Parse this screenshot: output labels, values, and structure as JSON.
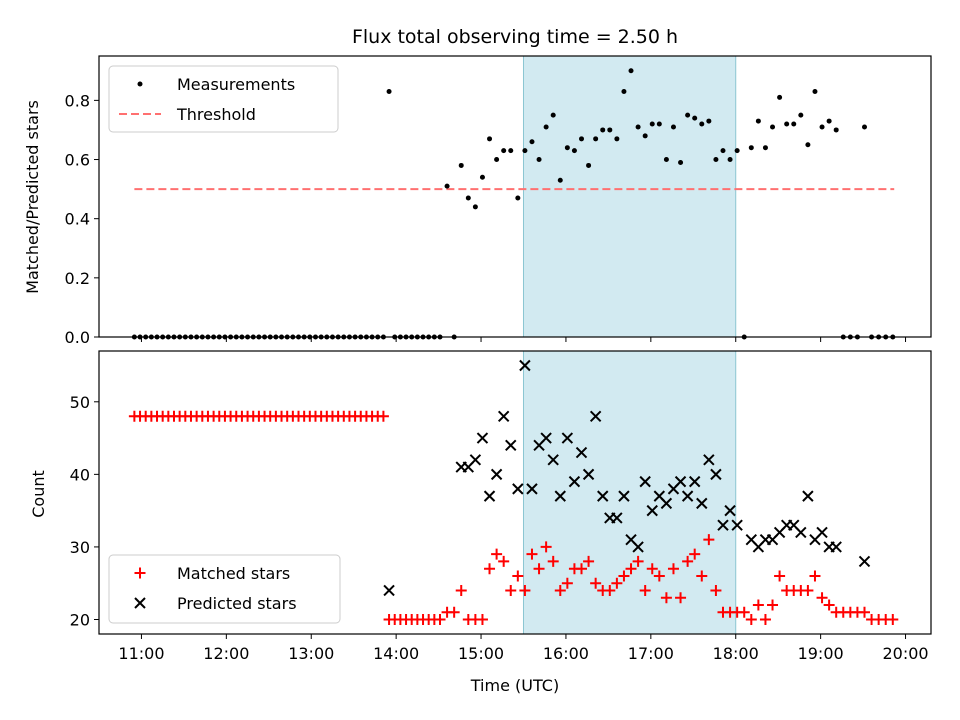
{
  "colors": {
    "measurements": "#000000",
    "threshold": "#ff7070",
    "matched": "#ff0000",
    "predicted": "#000000",
    "observing_window": "#add8e6"
  },
  "chart_data": [
    {
      "type": "scatter",
      "title": "Flux total observing time = 2.50 h",
      "xlabel": "",
      "ylabel": "Matched/Predicted stars",
      "xlim": [
        "10:30",
        "20:18"
      ],
      "ylim": [
        0,
        0.95
      ],
      "yticks": [
        "0.0",
        "0.2",
        "0.4",
        "0.6",
        "0.8"
      ],
      "shaded_interval": [
        "15:30",
        "18:00"
      ],
      "legend": {
        "position": "upper left",
        "entries": [
          "Measurements",
          "Threshold"
        ]
      },
      "threshold": {
        "name": "Threshold",
        "value": 0.5,
        "x": [
          "10:55",
          "19:52"
        ]
      },
      "series": [
        {
          "name": "Measurements",
          "x": [
            "10:55",
            "10:59",
            "11:03",
            "11:07",
            "11:11",
            "11:15",
            "11:19",
            "11:23",
            "11:27",
            "11:31",
            "11:35",
            "11:39",
            "11:43",
            "11:47",
            "11:51",
            "11:55",
            "11:59",
            "12:03",
            "12:07",
            "12:11",
            "12:15",
            "12:19",
            "12:23",
            "12:27",
            "12:31",
            "12:35",
            "12:39",
            "12:43",
            "12:47",
            "12:51",
            "12:55",
            "12:59",
            "13:03",
            "13:07",
            "13:11",
            "13:15",
            "13:19",
            "13:23",
            "13:27",
            "13:31",
            "13:35",
            "13:39",
            "13:43",
            "13:47",
            "13:51",
            "13:55",
            "13:59",
            "14:03",
            "14:07",
            "14:11",
            "14:15",
            "14:19",
            "14:23",
            "14:27",
            "14:31",
            "14:36",
            "14:41",
            "14:46",
            "14:51",
            "14:56",
            "15:01",
            "15:06",
            "15:11",
            "15:16",
            "15:21",
            "15:26",
            "15:31",
            "15:36",
            "15:41",
            "15:46",
            "15:51",
            "15:56",
            "16:01",
            "16:06",
            "16:11",
            "16:16",
            "16:21",
            "16:26",
            "16:31",
            "16:36",
            "16:41",
            "16:46",
            "16:51",
            "16:56",
            "17:01",
            "17:06",
            "17:11",
            "17:16",
            "17:21",
            "17:26",
            "17:31",
            "17:36",
            "17:41",
            "17:46",
            "17:51",
            "17:56",
            "18:01",
            "18:06",
            "18:11",
            "18:16",
            "18:21",
            "18:26",
            "18:31",
            "18:36",
            "18:41",
            "18:46",
            "18:51",
            "18:56",
            "19:01",
            "19:06",
            "19:11",
            "19:16",
            "19:21",
            "19:26",
            "19:31",
            "19:36",
            "19:41",
            "19:46",
            "19:51"
          ],
          "y": [
            0,
            0,
            0,
            0,
            0,
            0,
            0,
            0,
            0,
            0,
            0,
            0,
            0,
            0,
            0,
            0,
            0,
            0,
            0,
            0,
            0,
            0,
            0,
            0,
            0,
            0,
            0,
            0,
            0,
            0,
            0,
            0,
            0,
            0,
            0,
            0,
            0,
            0,
            0,
            0,
            0,
            0,
            0,
            0,
            0,
            0.83,
            0,
            0,
            0,
            0,
            0,
            0,
            0,
            0,
            0,
            0.51,
            0,
            0.58,
            0.47,
            0.44,
            0.54,
            0.67,
            0.6,
            0.63,
            0.63,
            0.47,
            0.63,
            0.66,
            0.6,
            0.71,
            0.75,
            0.53,
            0.64,
            0.63,
            0.67,
            0.58,
            0.67,
            0.7,
            0.7,
            0.67,
            0.83,
            0.9,
            0.71,
            0.68,
            0.72,
            0.72,
            0.6,
            0.71,
            0.59,
            0.75,
            0.74,
            0.72,
            0.73,
            0.6,
            0.63,
            0.6,
            0.63,
            0,
            0.64,
            0.73,
            0.64,
            0.71,
            0.81,
            0.72,
            0.72,
            0.75,
            0.65,
            0.83,
            0.71,
            0.73,
            0.7,
            0,
            0,
            0,
            0.71,
            0,
            0,
            0,
            0
          ]
        }
      ]
    },
    {
      "type": "scatter",
      "title": "",
      "xlabel": "Time (UTC)",
      "ylabel": "Count",
      "xlim": [
        "10:30",
        "20:18"
      ],
      "ylim": [
        18,
        57
      ],
      "xticks": [
        "11:00",
        "12:00",
        "13:00",
        "14:00",
        "15:00",
        "16:00",
        "17:00",
        "18:00",
        "19:00",
        "20:00"
      ],
      "yticks": [
        "20",
        "30",
        "40",
        "50"
      ],
      "shaded_interval": [
        "15:30",
        "18:00"
      ],
      "legend": {
        "position": "lower left",
        "entries": [
          "Matched stars",
          "Predicted stars"
        ]
      },
      "series": [
        {
          "name": "Matched stars",
          "x": [
            "10:55",
            "10:59",
            "11:03",
            "11:07",
            "11:11",
            "11:15",
            "11:19",
            "11:23",
            "11:27",
            "11:31",
            "11:35",
            "11:39",
            "11:43",
            "11:47",
            "11:51",
            "11:55",
            "11:59",
            "12:03",
            "12:07",
            "12:11",
            "12:15",
            "12:19",
            "12:23",
            "12:27",
            "12:31",
            "12:35",
            "12:39",
            "12:43",
            "12:47",
            "12:51",
            "12:55",
            "12:59",
            "13:03",
            "13:07",
            "13:11",
            "13:15",
            "13:19",
            "13:23",
            "13:27",
            "13:31",
            "13:35",
            "13:39",
            "13:43",
            "13:47",
            "13:51",
            "13:55",
            "13:59",
            "14:03",
            "14:07",
            "14:11",
            "14:15",
            "14:19",
            "14:23",
            "14:27",
            "14:31",
            "14:36",
            "14:41",
            "14:46",
            "14:51",
            "14:56",
            "15:01",
            "15:06",
            "15:11",
            "15:16",
            "15:21",
            "15:26",
            "15:31",
            "15:36",
            "15:41",
            "15:46",
            "15:51",
            "15:56",
            "16:01",
            "16:06",
            "16:11",
            "16:16",
            "16:21",
            "16:26",
            "16:31",
            "16:36",
            "16:41",
            "16:46",
            "16:51",
            "16:56",
            "17:01",
            "17:06",
            "17:11",
            "17:16",
            "17:21",
            "17:26",
            "17:31",
            "17:36",
            "17:41",
            "17:46",
            "17:51",
            "17:56",
            "18:01",
            "18:06",
            "18:11",
            "18:16",
            "18:21",
            "18:26",
            "18:31",
            "18:36",
            "18:41",
            "18:46",
            "18:51",
            "18:56",
            "19:01",
            "19:06",
            "19:11",
            "19:16",
            "19:21",
            "19:26",
            "19:31",
            "19:36",
            "19:41",
            "19:46",
            "19:51"
          ],
          "y": [
            48,
            48,
            48,
            48,
            48,
            48,
            48,
            48,
            48,
            48,
            48,
            48,
            48,
            48,
            48,
            48,
            48,
            48,
            48,
            48,
            48,
            48,
            48,
            48,
            48,
            48,
            48,
            48,
            48,
            48,
            48,
            48,
            48,
            48,
            48,
            48,
            48,
            48,
            48,
            48,
            48,
            48,
            48,
            48,
            48,
            20,
            20,
            20,
            20,
            20,
            20,
            20,
            20,
            20,
            20,
            21,
            21,
            24,
            20,
            20,
            20,
            27,
            29,
            28,
            24,
            26,
            24,
            29,
            27,
            30,
            28,
            24,
            25,
            27,
            27,
            28,
            25,
            24,
            24,
            25,
            26,
            27,
            28,
            24,
            27,
            26,
            23,
            27,
            23,
            28,
            29,
            26,
            31,
            24,
            21,
            21,
            21,
            21,
            20,
            22,
            20,
            22,
            26,
            24,
            24,
            24,
            24,
            26,
            23,
            22,
            21,
            21,
            21,
            21,
            21,
            20,
            20,
            20,
            20
          ]
        },
        {
          "name": "Predicted stars",
          "x": [
            "13:55",
            "14:46",
            "14:51",
            "14:56",
            "15:01",
            "15:06",
            "15:11",
            "15:16",
            "15:21",
            "15:26",
            "15:31",
            "15:36",
            "15:41",
            "15:46",
            "15:51",
            "15:56",
            "16:01",
            "16:06",
            "16:11",
            "16:16",
            "16:21",
            "16:26",
            "16:31",
            "16:36",
            "16:41",
            "16:46",
            "16:51",
            "16:56",
            "17:01",
            "17:06",
            "17:11",
            "17:16",
            "17:21",
            "17:26",
            "17:31",
            "17:36",
            "17:41",
            "17:46",
            "17:51",
            "17:56",
            "18:01",
            "18:11",
            "18:16",
            "18:21",
            "18:26",
            "18:31",
            "18:36",
            "18:41",
            "18:46",
            "18:51",
            "18:56",
            "19:01",
            "19:06",
            "19:11",
            "19:31"
          ],
          "y": [
            24,
            41,
            41,
            42,
            45,
            37,
            40,
            48,
            44,
            38,
            55,
            38,
            44,
            45,
            42,
            37,
            45,
            39,
            43,
            40,
            48,
            37,
            34,
            34,
            37,
            31,
            30,
            39,
            35,
            37,
            36,
            38,
            39,
            37,
            39,
            36,
            42,
            40,
            33,
            35,
            33,
            31,
            30,
            31,
            31,
            32,
            33,
            33,
            32,
            37,
            31,
            32,
            30,
            30,
            28
          ]
        }
      ]
    }
  ]
}
